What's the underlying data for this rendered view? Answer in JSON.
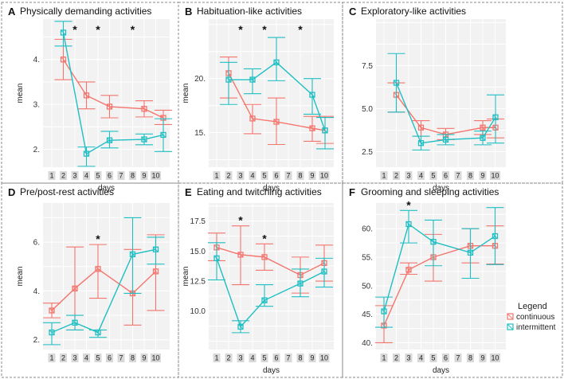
{
  "legend": {
    "title": "Legend",
    "items": [
      {
        "name": "continuous",
        "color": "#f4756e"
      },
      {
        "name": "intermittent",
        "color": "#1fbfc3"
      }
    ]
  },
  "chart_data": [
    {
      "letter": "A",
      "title": "Physically demanding activities",
      "type": "line",
      "xlabel": "days",
      "ylabel": "mean",
      "categories": [
        "1",
        "2",
        "3",
        "4",
        "5",
        "6",
        "7",
        "8",
        "9",
        "10"
      ],
      "ylim": [
        1.6,
        4.9
      ],
      "yticks": [
        2,
        3,
        4
      ],
      "ytick_labels": [
        "2.",
        "3.",
        "4."
      ],
      "significant_days": [
        "3",
        "5",
        "8"
      ],
      "series": [
        {
          "name": "continuous",
          "color": "#f4756e",
          "x": [
            "2",
            "4",
            "6",
            "9",
            "11"
          ],
          "values": [
            4.0,
            3.2,
            2.95,
            2.9,
            2.7
          ],
          "err": [
            [
              3.55,
              4.45
            ],
            [
              2.9,
              3.5
            ],
            [
              2.7,
              3.2
            ],
            [
              2.72,
              3.08
            ],
            [
              2.55,
              2.87
            ]
          ]
        },
        {
          "name": "intermittent",
          "color": "#1fbfc3",
          "x": [
            "2",
            "4",
            "6",
            "9",
            "11"
          ],
          "values": [
            4.6,
            1.9,
            2.2,
            2.22,
            2.32
          ],
          "err": [
            [
              4.3,
              4.85
            ],
            [
              1.62,
              2.05
            ],
            [
              2.03,
              2.4
            ],
            [
              2.1,
              2.34
            ],
            [
              1.95,
              2.68
            ]
          ]
        }
      ]
    },
    {
      "letter": "B",
      "title": "Habituation-like activities",
      "type": "line",
      "xlabel": "days",
      "ylabel": "mean",
      "categories": [
        "1",
        "2",
        "3",
        "4",
        "5",
        "6",
        "7",
        "8",
        "9",
        "10"
      ],
      "ylim": [
        11.8,
        25.5
      ],
      "yticks": [
        15,
        20
      ],
      "ytick_labels": [
        "15.",
        "20."
      ],
      "significant_days": [
        "3",
        "5",
        "8"
      ],
      "series": [
        {
          "name": "continuous",
          "color": "#f4756e",
          "x": [
            "2",
            "4",
            "6",
            "9",
            "11"
          ],
          "values": [
            20.5,
            16.3,
            16.0,
            15.4,
            15.2
          ],
          "err": [
            [
              18.2,
              22.0
            ],
            [
              14.9,
              17.6
            ],
            [
              13.9,
              18.2
            ],
            [
              14.2,
              16.5
            ],
            [
              14.0,
              16.5
            ]
          ]
        },
        {
          "name": "intermittent",
          "color": "#1fbfc3",
          "x": [
            "2",
            "4",
            "6",
            "9",
            "11"
          ],
          "values": [
            19.9,
            19.9,
            21.5,
            18.5,
            15.2
          ],
          "err": [
            [
              17.6,
              21.5
            ],
            [
              18.6,
              20.9
            ],
            [
              19.8,
              23.8
            ],
            [
              16.7,
              20.0
            ],
            [
              13.5,
              16.4
            ]
          ]
        }
      ]
    },
    {
      "letter": "C",
      "title": "Exploratory-like activities",
      "type": "line",
      "xlabel": "days",
      "ylabel": "",
      "categories": [
        "1",
        "2",
        "3",
        "4",
        "5",
        "6",
        "7",
        "8",
        "9",
        "10"
      ],
      "ylim": [
        1.6,
        10.2
      ],
      "yticks": [
        2.5,
        5.0,
        7.5
      ],
      "ytick_labels": [
        "2.5",
        "5.0",
        "7.5"
      ],
      "significant_days": [],
      "series": [
        {
          "name": "continuous",
          "color": "#f4756e",
          "x": [
            "2",
            "4",
            "6",
            "9",
            "11"
          ],
          "values": [
            5.8,
            3.9,
            3.5,
            3.9,
            3.9
          ],
          "err": [
            [
              4.8,
              6.5
            ],
            [
              3.4,
              4.3
            ],
            [
              3.2,
              3.85
            ],
            [
              3.5,
              4.3
            ],
            [
              3.3,
              4.4
            ]
          ]
        },
        {
          "name": "intermittent",
          "color": "#1fbfc3",
          "x": [
            "2",
            "4",
            "6",
            "9",
            "11"
          ],
          "values": [
            6.5,
            3.0,
            3.2,
            3.3,
            4.5
          ],
          "err": [
            [
              4.8,
              8.2
            ],
            [
              2.6,
              3.4
            ],
            [
              2.9,
              3.5
            ],
            [
              2.9,
              3.7
            ],
            [
              3.0,
              5.8
            ]
          ]
        }
      ]
    },
    {
      "letter": "D",
      "title": "Pre/post-rest activities",
      "type": "line",
      "xlabel": "",
      "ylabel": "mean",
      "categories": [
        "1",
        "2",
        "3",
        "4",
        "5",
        "6",
        "7",
        "8",
        "9",
        "10"
      ],
      "ylim": [
        1.6,
        7.6
      ],
      "yticks": [
        2,
        4,
        6
      ],
      "ytick_labels": [
        "2.",
        "4.",
        "6."
      ],
      "significant_days": [
        "5"
      ],
      "series": [
        {
          "name": "continuous",
          "color": "#f4756e",
          "x": [
            "1",
            "3",
            "5",
            "8",
            "10"
          ],
          "values": [
            3.2,
            4.1,
            4.9,
            3.9,
            4.8
          ],
          "err": [
            [
              2.9,
              3.5
            ],
            [
              2.4,
              5.8
            ],
            [
              3.7,
              5.9
            ],
            [
              2.6,
              5.7
            ],
            [
              3.2,
              6.3
            ]
          ]
        },
        {
          "name": "intermittent",
          "color": "#1fbfc3",
          "x": [
            "1",
            "3",
            "5",
            "8",
            "10"
          ],
          "values": [
            2.3,
            2.7,
            2.3,
            5.5,
            5.7
          ],
          "err": [
            [
              1.8,
              2.7
            ],
            [
              2.4,
              3.0
            ],
            [
              2.1,
              2.4
            ],
            [
              3.9,
              7.0
            ],
            [
              5.1,
              6.2
            ]
          ]
        }
      ]
    },
    {
      "letter": "E",
      "title": "Eating and twitching activities",
      "type": "line",
      "xlabel": "days",
      "ylabel": "mean",
      "categories": [
        "1",
        "2",
        "3",
        "4",
        "5",
        "6",
        "7",
        "8",
        "9",
        "10"
      ],
      "ylim": [
        6.8,
        19.0
      ],
      "yticks": [
        10.0,
        12.5,
        15.0,
        17.5
      ],
      "ytick_labels": [
        "10.0",
        "12.5",
        "15.0",
        "17.5"
      ],
      "significant_days": [
        "3",
        "5"
      ],
      "series": [
        {
          "name": "continuous",
          "color": "#f4756e",
          "x": [
            "1",
            "3",
            "5",
            "8",
            "10"
          ],
          "values": [
            15.3,
            14.7,
            14.5,
            13.0,
            14.0
          ],
          "err": [
            [
              14.2,
              16.5
            ],
            [
              12.2,
              17.1
            ],
            [
              13.4,
              15.6
            ],
            [
              11.5,
              14.5
            ],
            [
              12.5,
              15.5
            ]
          ]
        },
        {
          "name": "intermittent",
          "color": "#1fbfc3",
          "x": [
            "1",
            "3",
            "5",
            "8",
            "10"
          ],
          "values": [
            14.4,
            8.7,
            10.9,
            12.3,
            13.3
          ],
          "err": [
            [
              12.6,
              15.7
            ],
            [
              8.2,
              9.2
            ],
            [
              10.4,
              12.2
            ],
            [
              11.2,
              13.5
            ],
            [
              12.0,
              14.4
            ]
          ]
        }
      ]
    },
    {
      "letter": "F",
      "title": "Grooming and sleeping activities",
      "type": "line",
      "xlabel": "days",
      "ylabel": "",
      "categories": [
        "1",
        "2",
        "3",
        "4",
        "5",
        "6",
        "7",
        "8",
        "9",
        "10"
      ],
      "ylim": [
        38.8,
        64.5
      ],
      "yticks": [
        40,
        45,
        50,
        55,
        60
      ],
      "ytick_labels": [
        "40.",
        "45.",
        "50.",
        "55.",
        "60."
      ],
      "significant_days": [
        "3"
      ],
      "series": [
        {
          "name": "continuous",
          "color": "#f4756e",
          "x": [
            "1",
            "3",
            "5",
            "8",
            "10"
          ],
          "values": [
            43.0,
            52.8,
            55.0,
            57.0,
            57.0
          ],
          "err": [
            [
              40.0,
              46.5
            ],
            [
              52.0,
              54.0
            ],
            [
              50.8,
              59.0
            ],
            [
              54.0,
              60.0
            ],
            [
              53.8,
              60.5
            ]
          ]
        },
        {
          "name": "intermittent",
          "color": "#1fbfc3",
          "x": [
            "1",
            "3",
            "5",
            "8",
            "10"
          ],
          "values": [
            45.5,
            60.8,
            57.7,
            55.8,
            58.7
          ],
          "err": [
            [
              42.7,
              48.0
            ],
            [
              57.5,
              63.2
            ],
            [
              53.5,
              61.5
            ],
            [
              51.3,
              60.0
            ],
            [
              53.7,
              63.7
            ]
          ]
        }
      ]
    }
  ]
}
